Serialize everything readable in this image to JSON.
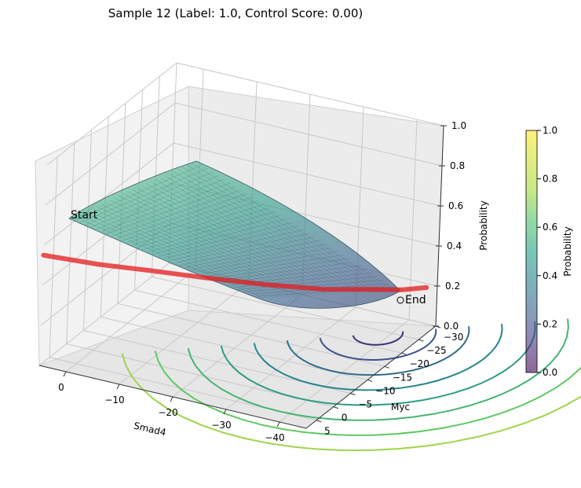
{
  "chart_data": {
    "type": "surface3d",
    "title": "Sample 12 (Label: 1.0, Control Score: 0.00)",
    "xlabel": "Smad4",
    "ylabel": "Myc",
    "zlabel": "Probability",
    "xlim": [
      5,
      -45
    ],
    "ylim": [
      8,
      -30
    ],
    "zlim": [
      0,
      1
    ],
    "x_ticks": [
      0,
      -10,
      -20,
      -30,
      -40
    ],
    "y_ticks": [
      5,
      0,
      -5,
      -10,
      -15,
      -20,
      -25,
      -30
    ],
    "z_ticks": [
      "0.0",
      "0.2",
      "0.4",
      "0.6",
      "0.8",
      "1.0"
    ],
    "grid": true,
    "colormap": "viridis",
    "surface_alpha": 0.5,
    "colorbar": {
      "label": "Probability",
      "range": [
        0,
        1
      ],
      "ticks": [
        "0.0",
        "0.2",
        "0.4",
        "0.6",
        "0.8",
        "1.0"
      ],
      "placement": "right"
    },
    "trajectory": {
      "color": "#e41a1c",
      "points": [
        [
          5,
          8,
          0.55
        ],
        [
          -3,
          4,
          0.5
        ],
        [
          -10,
          0,
          0.46
        ],
        [
          -18,
          -4,
          0.42
        ],
        [
          -26,
          -9,
          0.37
        ],
        [
          -33,
          -15,
          0.31
        ],
        [
          -38,
          -21,
          0.26
        ],
        [
          -41,
          -26,
          0.21
        ],
        [
          -43,
          -30,
          0.18
        ]
      ],
      "start_label": "Start",
      "end_label": "End"
    },
    "contour_levels": [
      0.1,
      0.2,
      0.3,
      0.4,
      0.5,
      0.6,
      0.7,
      0.8
    ]
  }
}
